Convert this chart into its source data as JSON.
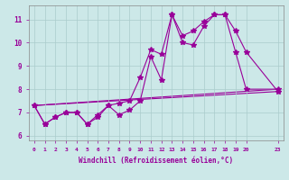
{
  "background_color": "#cce8e8",
  "grid_color": "#aacccc",
  "line_color": "#990099",
  "marker": "*",
  "markersize": 4,
  "linewidth": 0.8,
  "xlabel": "Windchill (Refroidissement éolien,°C)",
  "xlim": [
    -0.5,
    23.5
  ],
  "ylim": [
    5.8,
    11.6
  ],
  "yticks": [
    6,
    7,
    8,
    9,
    10,
    11
  ],
  "xticks": [
    0,
    1,
    2,
    3,
    4,
    5,
    6,
    7,
    8,
    9,
    10,
    11,
    12,
    13,
    14,
    15,
    16,
    17,
    18,
    19,
    20,
    23
  ],
  "xtick_labels": [
    "0",
    "1",
    "2",
    "3",
    "4",
    "5",
    "6",
    "7",
    "8",
    "9",
    "10",
    "11",
    "12",
    "13",
    "14",
    "15",
    "16",
    "17",
    "18",
    "19",
    "20",
    "23"
  ],
  "lines": [
    {
      "x": [
        0,
        1,
        2,
        3,
        4,
        5,
        6,
        7,
        8,
        9,
        10,
        11,
        12,
        13,
        14,
        15,
        16,
        17,
        18,
        19,
        20,
        23
      ],
      "y": [
        7.3,
        6.5,
        6.8,
        7.0,
        7.0,
        6.5,
        6.8,
        7.3,
        6.9,
        7.1,
        7.5,
        9.4,
        8.4,
        11.2,
        10.0,
        9.9,
        10.7,
        11.2,
        11.2,
        9.6,
        8.0,
        8.0
      ],
      "with_markers": true
    },
    {
      "x": [
        0,
        1,
        2,
        3,
        4,
        5,
        6,
        7,
        8,
        9,
        10,
        11,
        12,
        13,
        14,
        15,
        16,
        17,
        18,
        19,
        20,
        23
      ],
      "y": [
        7.3,
        6.5,
        6.8,
        7.0,
        7.0,
        6.5,
        6.9,
        7.3,
        7.4,
        7.5,
        8.5,
        9.7,
        9.5,
        11.2,
        10.3,
        10.5,
        10.9,
        11.2,
        11.2,
        10.5,
        9.6,
        7.9
      ],
      "with_markers": true
    },
    {
      "x": [
        0,
        23
      ],
      "y": [
        7.3,
        8.0
      ],
      "with_markers": false
    },
    {
      "x": [
        0,
        23
      ],
      "y": [
        7.3,
        7.9
      ],
      "with_markers": false
    }
  ]
}
